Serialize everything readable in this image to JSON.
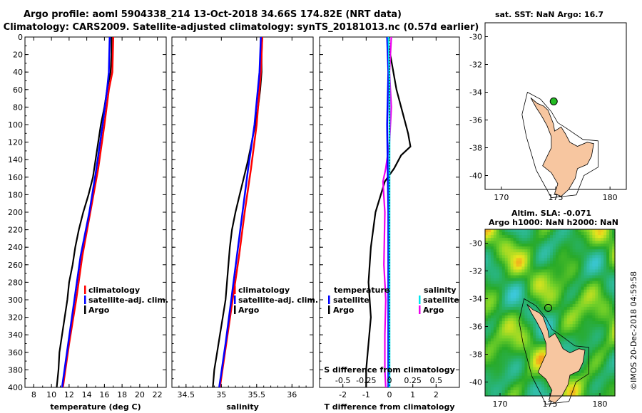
{
  "title_line1": "Argo profile: aoml 5904338_214 13-Oct-2018 34.66S 174.82E (NRT data)",
  "title_line2": "Climatology: CARS2009. Satellite-adjusted climatology: synTS_20181013.nc (0.57d earlier)",
  "map1": {
    "title": "sat. SST: NaN Argo: 16.7",
    "xticks": [
      "170",
      "175",
      "180"
    ],
    "yticks": [
      "-30",
      "-32",
      "-34",
      "-36",
      "-38",
      "-40"
    ],
    "float_lon": 174.82,
    "float_lat": -34.66
  },
  "map2": {
    "title1": "Altim. SLA: -0.071",
    "title2": "Argo h1000: NaN h2000: NaN",
    "xticks": [
      "170",
      "175",
      "180"
    ],
    "yticks": [
      "-30",
      "-32",
      "-34",
      "-36",
      "-38",
      "-40"
    ]
  },
  "credit": "©IMOS 20-Dec-2018 04:59:58",
  "colors": {
    "argo": "#000000",
    "clim": "#ff0000",
    "sat": "#0000ff",
    "sal_sat": "#00e5ee",
    "sal_argo": "#ee00ee",
    "land": "#f7c6a0"
  },
  "chart_data": [
    {
      "type": "line",
      "xlabel": "temperature (deg C)",
      "ylabel": "",
      "xlim": [
        7,
        23
      ],
      "ylim": [
        400,
        0
      ],
      "xticks": [
        "8",
        "10",
        "12",
        "14",
        "16",
        "18",
        "20",
        "22"
      ],
      "yticks": [
        "0",
        "20",
        "40",
        "60",
        "80",
        "100",
        "120",
        "140",
        "160",
        "180",
        "200",
        "220",
        "240",
        "260",
        "280",
        "300",
        "320",
        "340",
        "360",
        "380",
        "400"
      ],
      "legend": [
        "climatology",
        "satellite-adj. clim.",
        "Argo"
      ],
      "series": [
        {
          "name": "climatology",
          "depth": [
            0,
            40,
            60,
            100,
            150,
            200,
            250,
            300,
            350,
            400
          ],
          "values": [
            17.0,
            16.9,
            16.5,
            16.0,
            15.3,
            14.4,
            13.5,
            12.8,
            12.0,
            11.3
          ]
        },
        {
          "name": "satellite-adj. clim.",
          "depth": [
            0,
            40,
            60,
            100,
            150,
            200,
            250,
            300,
            350,
            400
          ],
          "values": [
            16.6,
            16.5,
            16.3,
            15.8,
            15.1,
            14.3,
            13.3,
            12.6,
            11.9,
            11.2
          ]
        },
        {
          "name": "Argo",
          "depth": [
            0,
            20,
            40,
            50,
            60,
            80,
            100,
            120,
            140,
            160,
            180,
            200,
            220,
            240,
            260,
            280,
            300,
            320,
            340,
            360,
            380,
            400
          ],
          "values": [
            16.8,
            16.8,
            16.7,
            16.5,
            16.3,
            16.0,
            15.6,
            15.3,
            15.0,
            14.7,
            14.2,
            13.6,
            13.1,
            12.7,
            12.4,
            12.0,
            11.8,
            11.5,
            11.2,
            10.9,
            10.8,
            10.6
          ]
        }
      ]
    },
    {
      "type": "line",
      "xlabel": "salinity",
      "xlim": [
        34.3,
        36.3
      ],
      "ylim": [
        400,
        0
      ],
      "xticks": [
        "34.5",
        "35",
        "35.5",
        "36"
      ],
      "legend": [
        "climatology",
        "satellite-adj. clim.",
        "Argo"
      ],
      "series": [
        {
          "name": "climatology",
          "depth": [
            0,
            40,
            100,
            150,
            200,
            250,
            300,
            350,
            400
          ],
          "values": [
            35.58,
            35.56,
            35.5,
            35.42,
            35.33,
            35.25,
            35.16,
            35.07,
            34.98
          ]
        },
        {
          "name": "satellite-adj. clim.",
          "depth": [
            0,
            40,
            100,
            150,
            200,
            250,
            300,
            350,
            400
          ],
          "values": [
            35.56,
            35.54,
            35.47,
            35.38,
            35.3,
            35.22,
            35.14,
            35.06,
            34.97
          ]
        },
        {
          "name": "Argo",
          "depth": [
            0,
            20,
            40,
            60,
            80,
            100,
            120,
            140,
            160,
            180,
            200,
            220,
            240,
            260,
            280,
            300,
            320,
            340,
            360,
            380,
            400
          ],
          "values": [
            35.58,
            35.57,
            35.57,
            35.55,
            35.52,
            35.48,
            35.43,
            35.38,
            35.32,
            35.26,
            35.2,
            35.15,
            35.12,
            35.1,
            35.08,
            35.06,
            35.02,
            34.98,
            34.94,
            34.9,
            34.88
          ]
        }
      ]
    },
    {
      "type": "line",
      "xlabel": "T difference from climatology",
      "xlabel_top": "S difference from climatology",
      "xlim": [
        -3,
        3
      ],
      "ylim": [
        400,
        0
      ],
      "xticks": [
        "-2",
        "-1",
        "0",
        "1",
        "2"
      ],
      "xticks_top": [
        "-0.5",
        "-0.25",
        "0",
        "0.25",
        "0.5"
      ],
      "legend_left_title": "temperature",
      "legend_left": [
        "satellite",
        "Argo"
      ],
      "legend_right_title": "salinity",
      "legend_right": [
        "satellite",
        "Argo"
      ],
      "series": [
        {
          "name": "T satellite",
          "depth": [
            0,
            40,
            100,
            200,
            300,
            400
          ],
          "values": [
            -0.1,
            -0.05,
            -0.1,
            -0.05,
            -0.05,
            -0.05
          ]
        },
        {
          "name": "T Argo",
          "depth": [
            0,
            30,
            60,
            90,
            110,
            125,
            135,
            150,
            165,
            200,
            240,
            280,
            320,
            350,
            380,
            400
          ],
          "values": [
            -0.1,
            0.1,
            0.3,
            0.6,
            0.8,
            0.9,
            0.5,
            0.2,
            -0.2,
            -0.6,
            -0.8,
            -0.9,
            -0.8,
            -0.9,
            -1.0,
            -1.0
          ]
        },
        {
          "name": "S satellite",
          "depth": [
            0,
            50,
            100,
            200,
            300,
            400
          ],
          "values": [
            -0.01,
            0.0,
            0.0,
            0.0,
            0.0,
            0.0
          ]
        },
        {
          "name": "S Argo",
          "depth": [
            0,
            40,
            80,
            120,
            150,
            165,
            200,
            260,
            300,
            340,
            380,
            400
          ],
          "values": [
            0.02,
            0.0,
            0.02,
            0.0,
            -0.04,
            -0.07,
            -0.05,
            -0.06,
            -0.04,
            -0.05,
            -0.05,
            -0.04
          ]
        }
      ]
    }
  ]
}
